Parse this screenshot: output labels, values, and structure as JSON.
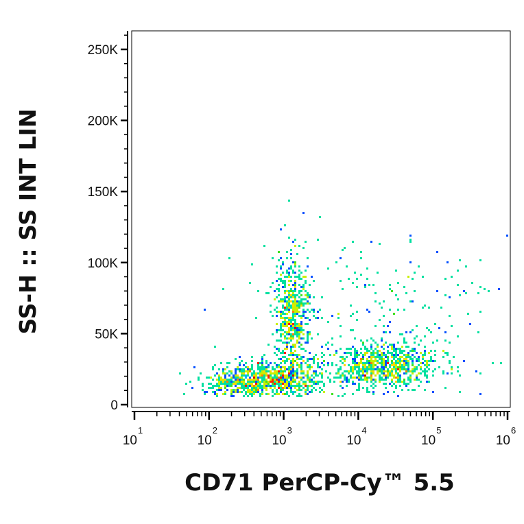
{
  "chart_data": {
    "type": "scatter",
    "subtype": "flow-cytometry-density-dot-plot",
    "title": "",
    "xlabel": "CD71 PerCP-Cy™ 5.5",
    "ylabel": "SS-H :: SS INT LIN",
    "x_scale": "log",
    "xlim": [
      10,
      1000000
    ],
    "ylim": [
      0,
      262144
    ],
    "grid": false,
    "legend": "none",
    "x_ticks": [
      {
        "value": 10,
        "base": "10",
        "exp": "1"
      },
      {
        "value": 100,
        "base": "10",
        "exp": "2"
      },
      {
        "value": 1000,
        "base": "10",
        "exp": "3"
      },
      {
        "value": 10000,
        "base": "10",
        "exp": "4"
      },
      {
        "value": 100000,
        "base": "10",
        "exp": "5"
      },
      {
        "value": 1000000,
        "base": "10",
        "exp": "6"
      }
    ],
    "y_ticks": [
      {
        "value": 0,
        "label": "0"
      },
      {
        "value": 50000,
        "label": "50K"
      },
      {
        "value": 100000,
        "label": "100K"
      },
      {
        "value": 150000,
        "label": "150K"
      },
      {
        "value": 200000,
        "label": "200K"
      },
      {
        "value": 250000,
        "label": "250K"
      }
    ],
    "density_colors": [
      "#0000ff",
      "#0050ff",
      "#00b4ff",
      "#00e0a0",
      "#40e020",
      "#c8f000",
      "#ffd800",
      "#ff8000",
      "#ff2000",
      "#e00000"
    ],
    "populations": [
      {
        "x_center": 1300,
        "x_spread_decades": 0.12,
        "y_center": 60000,
        "y_spread": 22000,
        "weight": 0.22
      },
      {
        "x_center": 700,
        "x_spread_decades": 0.35,
        "y_center": 18000,
        "y_spread": 6000,
        "weight": 0.28
      },
      {
        "x_center": 22000,
        "x_spread_decades": 0.35,
        "y_center": 27000,
        "y_spread": 8000,
        "weight": 0.32
      },
      {
        "x_center": 15000,
        "x_spread_decades": 0.9,
        "y_center": 65000,
        "y_spread": 28000,
        "weight": 0.1
      },
      {
        "x_center": 250,
        "x_spread_decades": 0.3,
        "y_center": 15000,
        "y_spread": 6000,
        "weight": 0.08
      }
    ]
  }
}
